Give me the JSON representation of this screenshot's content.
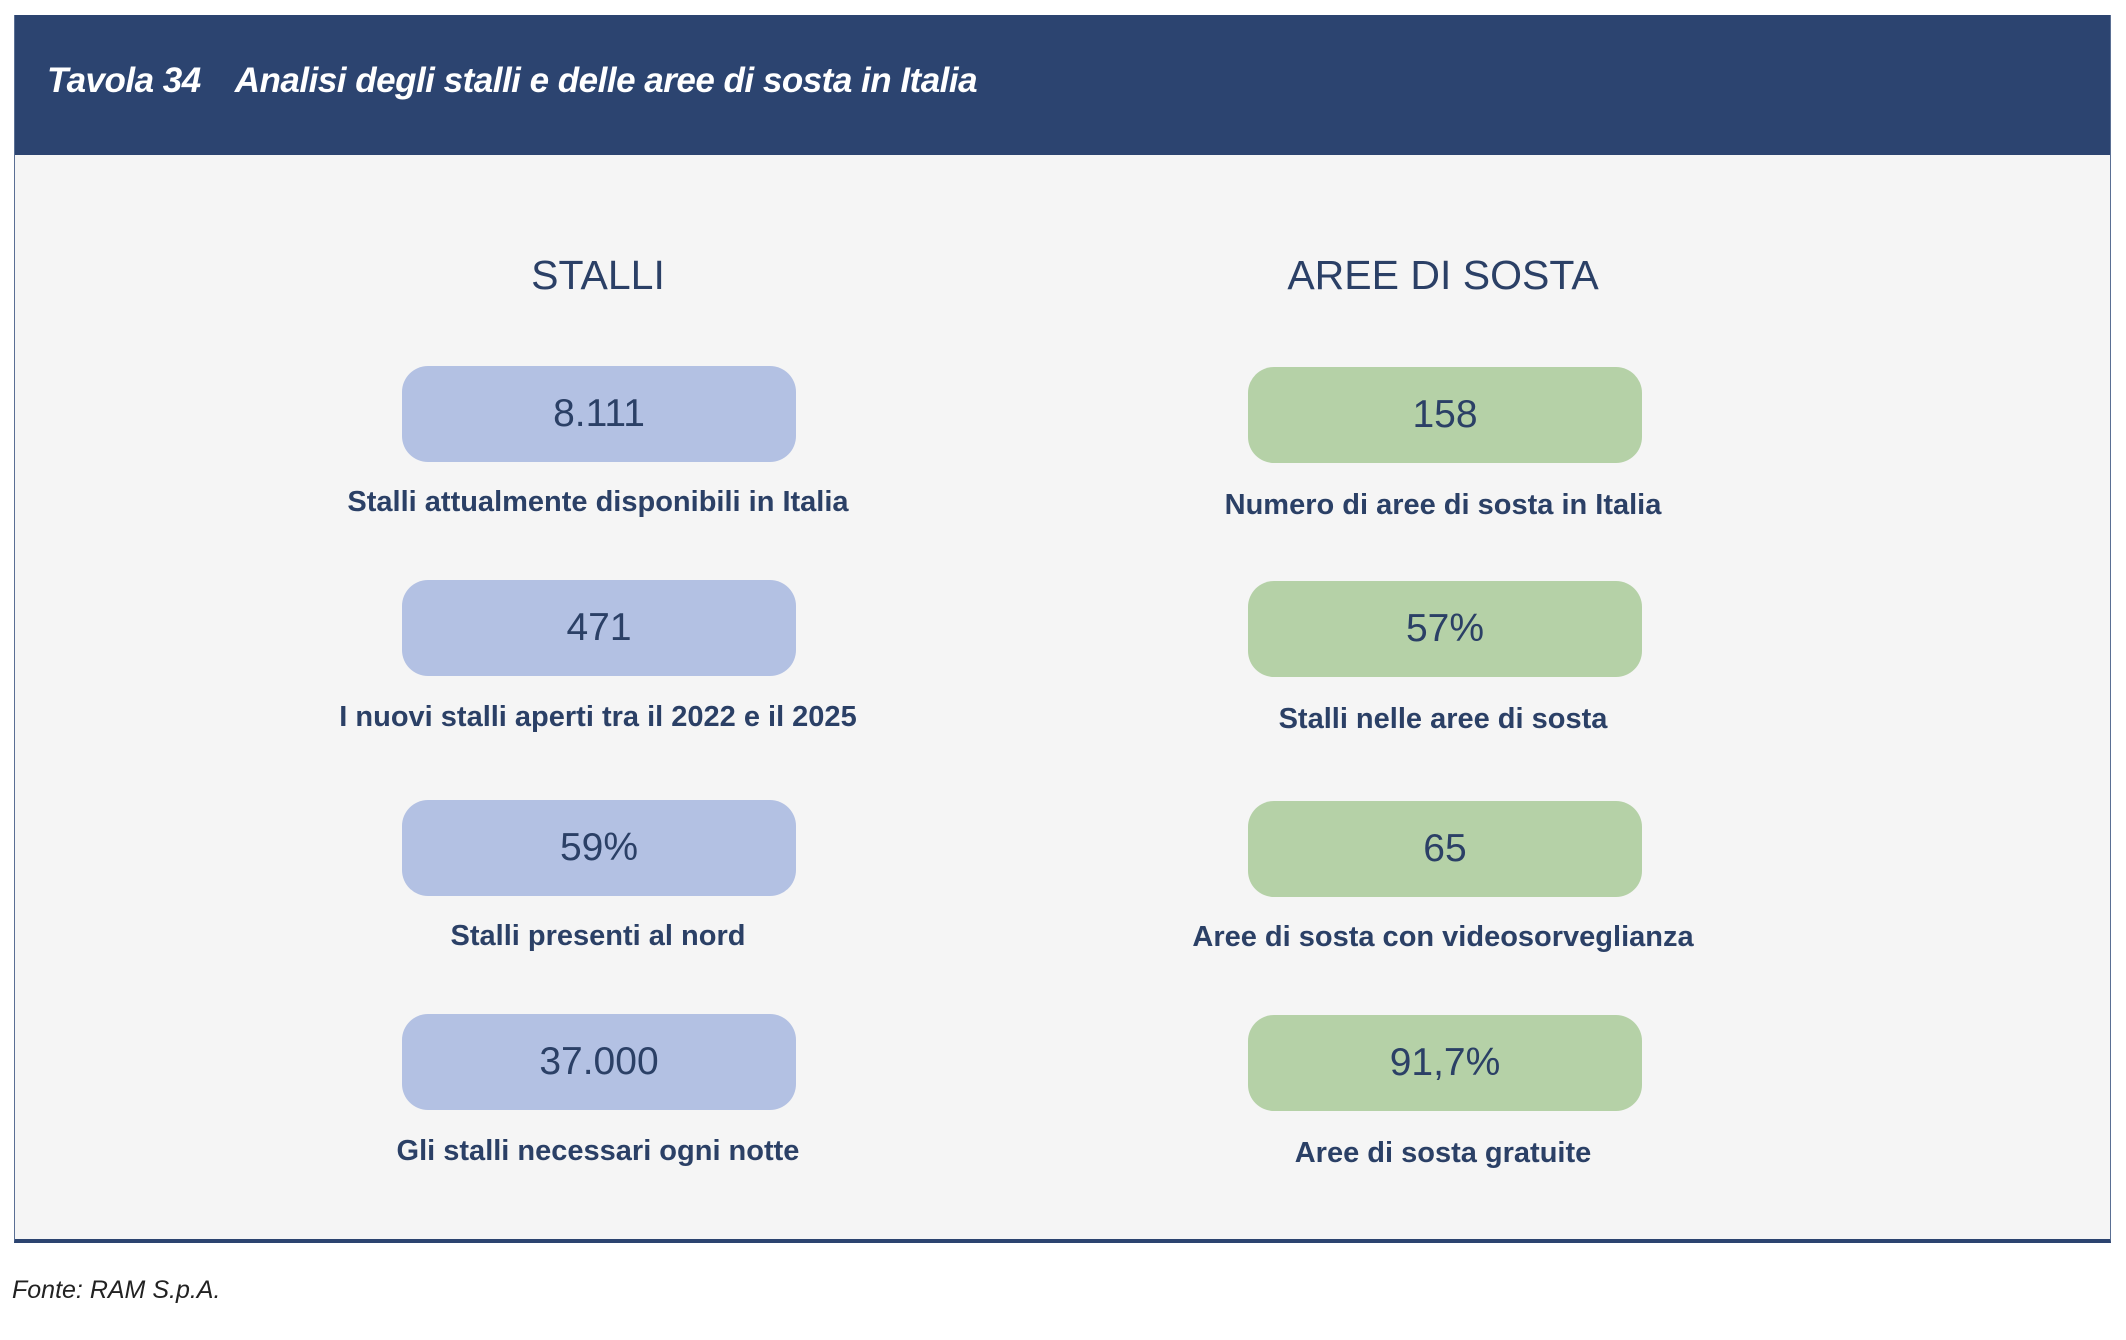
{
  "header": {
    "table_number": "Tavola 34",
    "title": "Analisi degli stalli e delle aree di sosta in Italia"
  },
  "colors": {
    "header": "#2c4470",
    "stalli_pill": "#b3c1e3",
    "aree_pill": "#b5d1a7",
    "text": "#2b4066"
  },
  "stalli": {
    "heading": "STALLI",
    "items": [
      {
        "value": "8.111",
        "label": "Stalli attualmente disponibili in Italia"
      },
      {
        "value": "471",
        "label": "I nuovi stalli aperti tra il 2022 e il 2025"
      },
      {
        "value": "59%",
        "label": "Stalli presenti al nord"
      },
      {
        "value": "37.000",
        "label": "Gli stalli necessari ogni notte"
      }
    ]
  },
  "aree": {
    "heading": "AREE DI SOSTA",
    "items": [
      {
        "value": "158",
        "label": "Numero di aree di sosta in Italia"
      },
      {
        "value": "57%",
        "label": "Stalli nelle aree di sosta"
      },
      {
        "value": "65",
        "label": "Aree di sosta con videosorveglianza"
      },
      {
        "value": "91,7%",
        "label": "Aree di sosta gratuite"
      }
    ]
  },
  "source": "Fonte: RAM S.p.A."
}
